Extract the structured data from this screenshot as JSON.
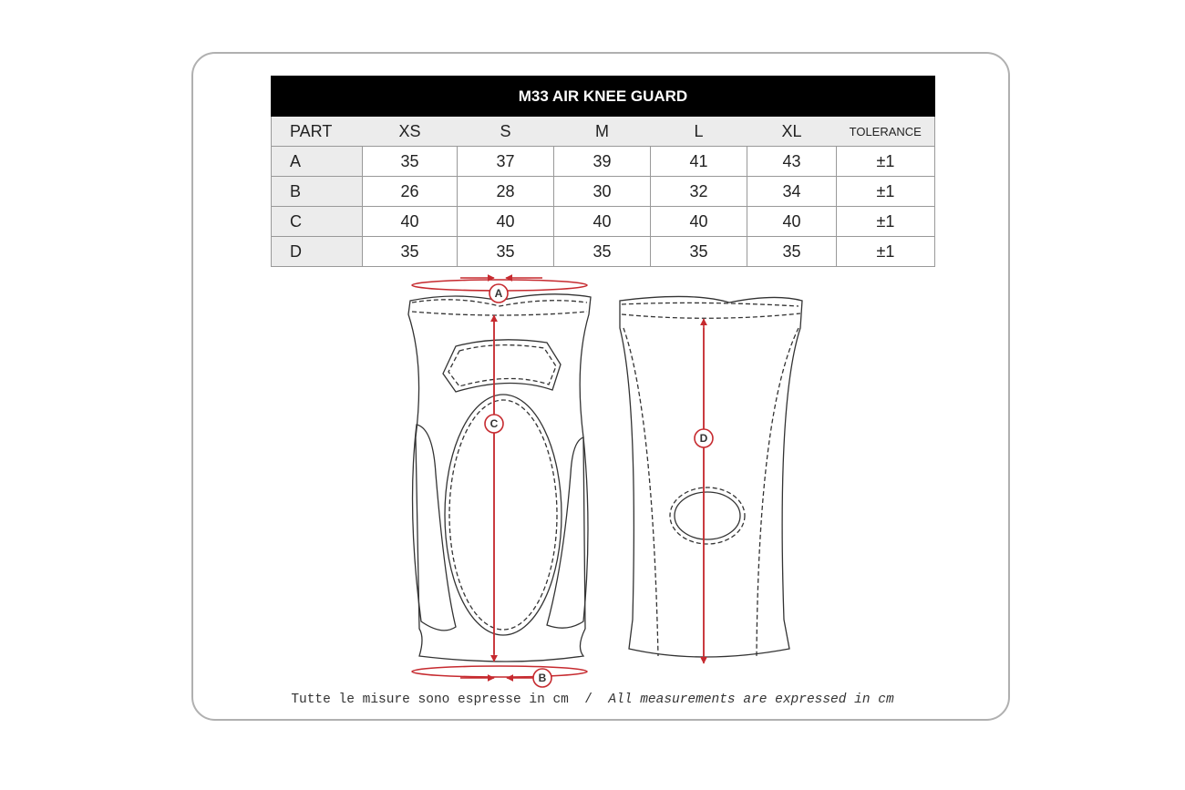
{
  "title": "M33 AIR KNEE GUARD",
  "columns": [
    "PART",
    "XS",
    "S",
    "M",
    "L",
    "XL",
    "TOLERANCE"
  ],
  "rows": [
    {
      "part": "A",
      "values": [
        "35",
        "37",
        "39",
        "41",
        "43"
      ],
      "tolerance": "±1"
    },
    {
      "part": "B",
      "values": [
        "26",
        "28",
        "30",
        "32",
        "34"
      ],
      "tolerance": "±1"
    },
    {
      "part": "C",
      "values": [
        "40",
        "40",
        "40",
        "40",
        "40"
      ],
      "tolerance": "±1"
    },
    {
      "part": "D",
      "values": [
        "35",
        "35",
        "35",
        "35",
        "35"
      ],
      "tolerance": "±1"
    }
  ],
  "diagram": {
    "labels": [
      "A",
      "B",
      "C",
      "D"
    ],
    "accent_color": "#c62a2f"
  },
  "footer": {
    "italian": "Tutte le misure sono espresse in cm",
    "separator": "/",
    "english": "All measurements are expressed in cm"
  }
}
